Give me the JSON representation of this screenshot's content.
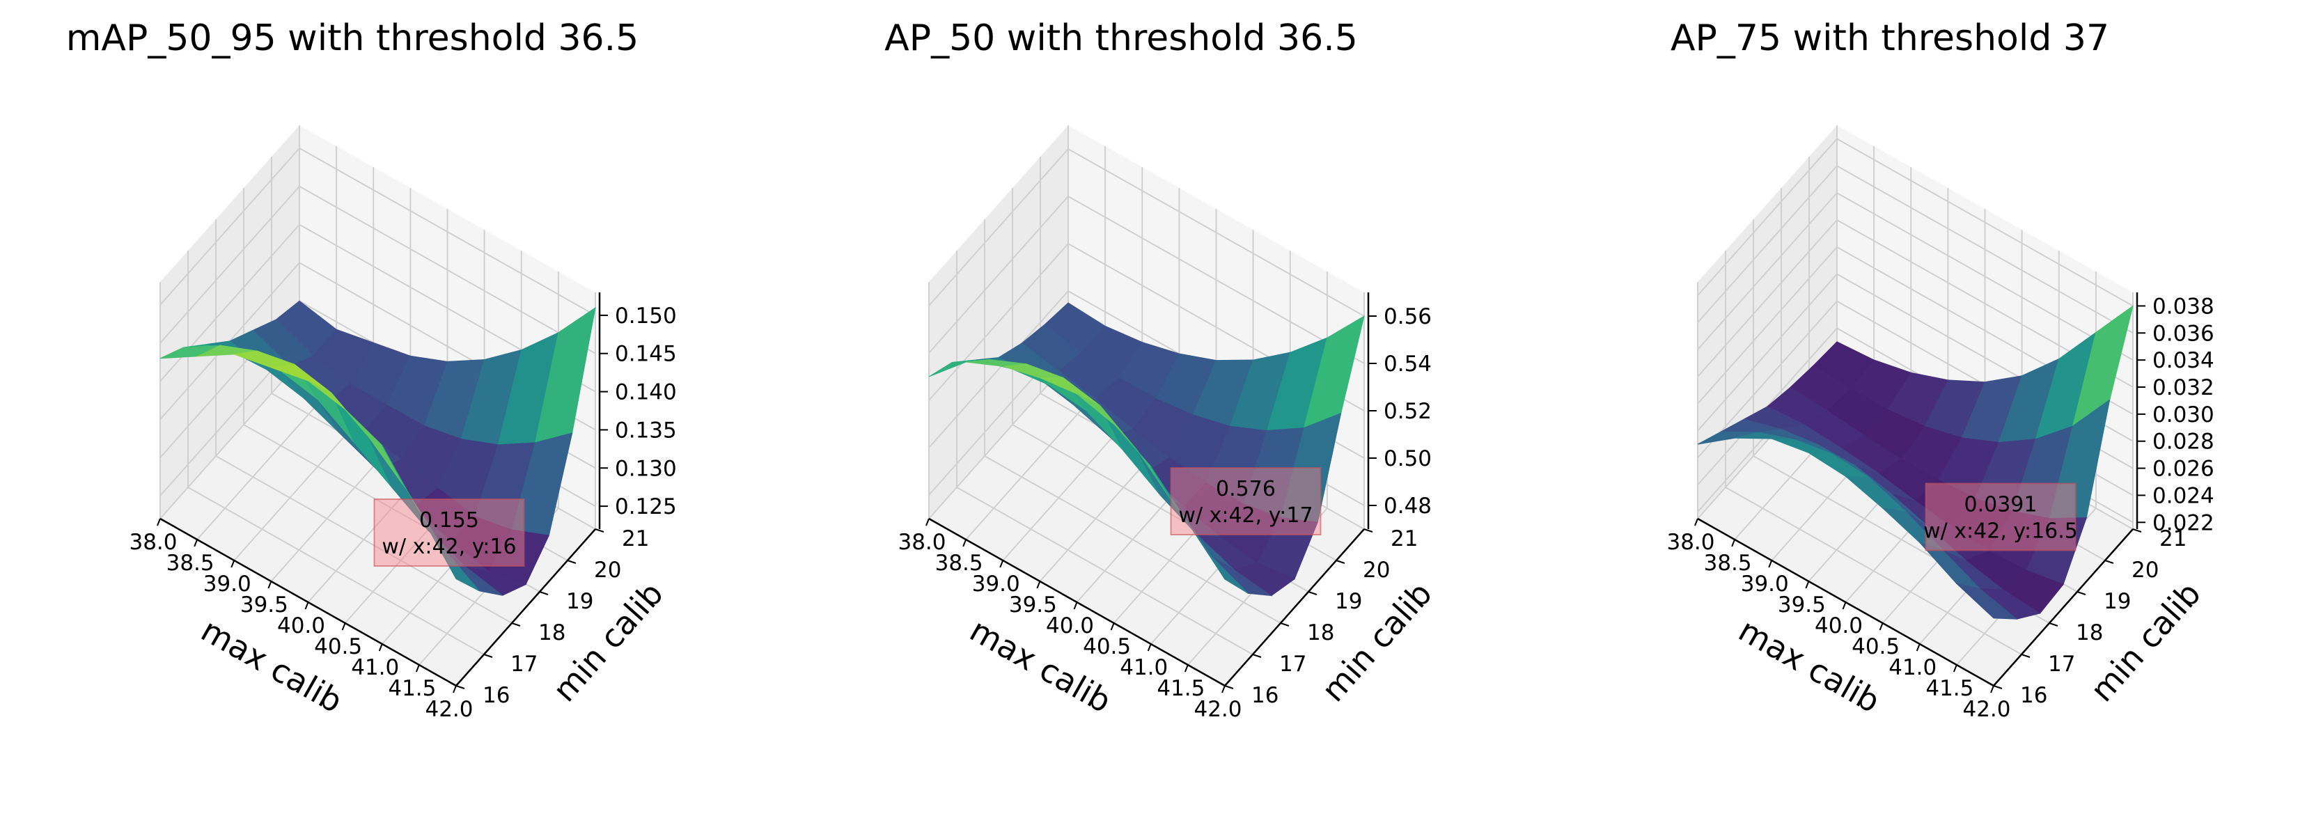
{
  "figure": {
    "title": ""
  },
  "chart_data": [
    {
      "type": "surface3d",
      "title": "mAP_50_95 with threshold 36.5",
      "xlabel": "max calib",
      "ylabel": "min calib",
      "xticks": [
        "38.0",
        "38.5",
        "39.0",
        "39.5",
        "40.0",
        "40.5",
        "41.0",
        "41.5",
        "42.0"
      ],
      "yticks": [
        "16",
        "17",
        "18",
        "19",
        "20",
        "21"
      ],
      "zticks": [
        "0.125",
        "0.130",
        "0.135",
        "0.140",
        "0.145",
        "0.150"
      ],
      "xlim": [
        38,
        42
      ],
      "ylim": [
        16,
        21
      ],
      "zlim": [
        0.122,
        0.153
      ],
      "colormap": "viridis",
      "annotation": {
        "value_text": "0.155",
        "location_text": "w/ x:42, y:16",
        "x": 42,
        "y": 16,
        "z": 0.155
      },
      "surface": [
        [
          0.143,
          0.146,
          0.149,
          0.15,
          0.151,
          0.15,
          0.148,
          0.142,
          0.136
        ],
        [
          0.141,
          0.144,
          0.146,
          0.147,
          0.146,
          0.143,
          0.139,
          0.134,
          0.131
        ],
        [
          0.138,
          0.139,
          0.14,
          0.139,
          0.136,
          0.133,
          0.13,
          0.128,
          0.127
        ],
        [
          0.135,
          0.134,
          0.133,
          0.131,
          0.129,
          0.127,
          0.125,
          0.124,
          0.125
        ],
        [
          0.133,
          0.131,
          0.129,
          0.128,
          0.127,
          0.126,
          0.125,
          0.126,
          0.128
        ],
        [
          0.131,
          0.129,
          0.128,
          0.128,
          0.128,
          0.129,
          0.131,
          0.134,
          0.138
        ],
        [
          0.13,
          0.129,
          0.13,
          0.131,
          0.133,
          0.136,
          0.14,
          0.145,
          0.151
        ]
      ]
    },
    {
      "type": "surface3d",
      "title": "AP_50 with threshold 36.5",
      "xlabel": "max calib",
      "ylabel": "min calib",
      "xticks": [
        "38.0",
        "38.5",
        "39.0",
        "39.5",
        "40.0",
        "40.5",
        "41.0",
        "41.5",
        "42.0"
      ],
      "yticks": [
        "16",
        "17",
        "18",
        "19",
        "20",
        "21"
      ],
      "zticks": [
        "0.48",
        "0.50",
        "0.52",
        "0.54",
        "0.56"
      ],
      "xlim": [
        38,
        42
      ],
      "ylim": [
        16,
        21
      ],
      "zlim": [
        0.47,
        0.57
      ],
      "colormap": "viridis",
      "annotation": {
        "value_text": "0.576",
        "location_text": "w/ x:42, y:17",
        "x": 42,
        "y": 17,
        "z": 0.576
      },
      "surface": [
        [
          0.53,
          0.545,
          0.552,
          0.556,
          0.558,
          0.554,
          0.545,
          0.53,
          0.515
        ],
        [
          0.525,
          0.535,
          0.542,
          0.545,
          0.542,
          0.532,
          0.518,
          0.505,
          0.498
        ],
        [
          0.515,
          0.52,
          0.522,
          0.52,
          0.512,
          0.502,
          0.494,
          0.488,
          0.486
        ],
        [
          0.505,
          0.506,
          0.503,
          0.498,
          0.492,
          0.486,
          0.482,
          0.48,
          0.482
        ],
        [
          0.5,
          0.497,
          0.494,
          0.49,
          0.487,
          0.485,
          0.485,
          0.488,
          0.495
        ],
        [
          0.497,
          0.494,
          0.492,
          0.492,
          0.494,
          0.498,
          0.505,
          0.515,
          0.53
        ],
        [
          0.495,
          0.494,
          0.496,
          0.5,
          0.506,
          0.515,
          0.527,
          0.542,
          0.56
        ]
      ]
    },
    {
      "type": "surface3d",
      "title": "AP_75 with threshold 37",
      "xlabel": "max calib",
      "ylabel": "min calib",
      "xticks": [
        "38.0",
        "38.5",
        "39.0",
        "39.5",
        "40.0",
        "40.5",
        "41.0",
        "41.5",
        "42.0"
      ],
      "yticks": [
        "16",
        "17",
        "18",
        "19",
        "20",
        "21"
      ],
      "zticks": [
        "0.022",
        "0.024",
        "0.026",
        "0.028",
        "0.030",
        "0.032",
        "0.034",
        "0.036",
        "0.038"
      ],
      "xlim": [
        38,
        42
      ],
      "ylim": [
        16,
        21
      ],
      "zlim": [
        0.0215,
        0.039
      ],
      "colormap": "viridis",
      "annotation": {
        "value_text": "0.0391",
        "location_text": "w/ x:42, y:16.5",
        "x": 42,
        "y": 16.5,
        "z": 0.0391
      },
      "surface": [
        [
          0.027,
          0.029,
          0.0305,
          0.031,
          0.0308,
          0.03,
          0.029,
          0.0275,
          0.0265
        ],
        [
          0.026,
          0.0275,
          0.0285,
          0.029,
          0.0288,
          0.0278,
          0.0265,
          0.0252,
          0.0245
        ],
        [
          0.025,
          0.0258,
          0.0262,
          0.0262,
          0.0256,
          0.0247,
          0.0238,
          0.0232,
          0.023
        ],
        [
          0.024,
          0.0242,
          0.024,
          0.0237,
          0.0232,
          0.0228,
          0.0226,
          0.0227,
          0.0232
        ],
        [
          0.0235,
          0.0233,
          0.023,
          0.0228,
          0.0228,
          0.023,
          0.0236,
          0.0246,
          0.0262
        ],
        [
          0.0232,
          0.023,
          0.023,
          0.0233,
          0.024,
          0.0252,
          0.027,
          0.0295,
          0.033
        ],
        [
          0.023,
          0.0232,
          0.0238,
          0.0248,
          0.0262,
          0.0282,
          0.031,
          0.0345,
          0.038
        ]
      ]
    }
  ]
}
